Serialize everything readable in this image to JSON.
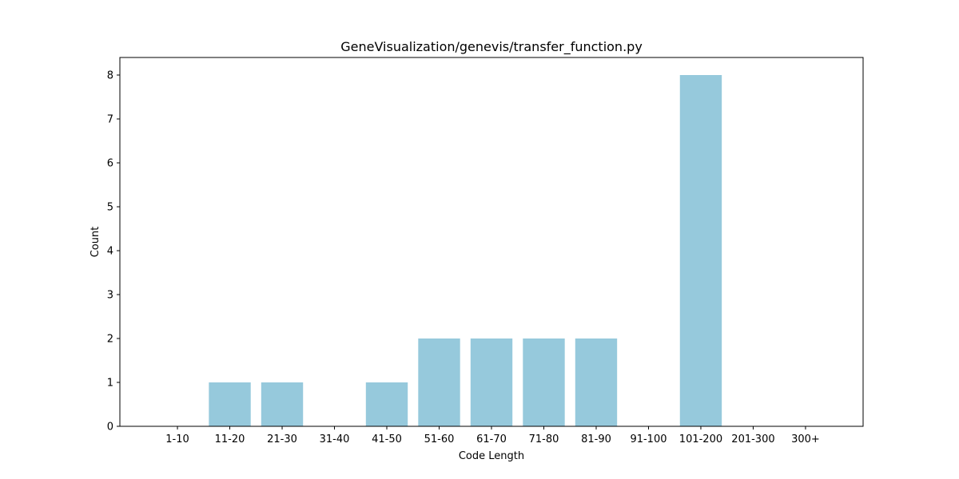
{
  "chart_data": {
    "type": "bar",
    "title": "GeneVisualization/genevis/transfer_function.py",
    "xlabel": "Code Length",
    "ylabel": "Count",
    "categories": [
      "1-10",
      "11-20",
      "21-30",
      "31-40",
      "41-50",
      "51-60",
      "61-70",
      "71-80",
      "81-90",
      "91-100",
      "101-200",
      "201-300",
      "300+"
    ],
    "values": [
      0,
      1,
      1,
      0,
      1,
      2,
      2,
      2,
      2,
      0,
      8,
      0,
      0
    ],
    "ylim": [
      0,
      8.4
    ],
    "yticks": [
      "0",
      "1",
      "2",
      "3",
      "4",
      "5",
      "6",
      "7",
      "8"
    ],
    "grid": false,
    "bar_color": "#96c9dc"
  }
}
